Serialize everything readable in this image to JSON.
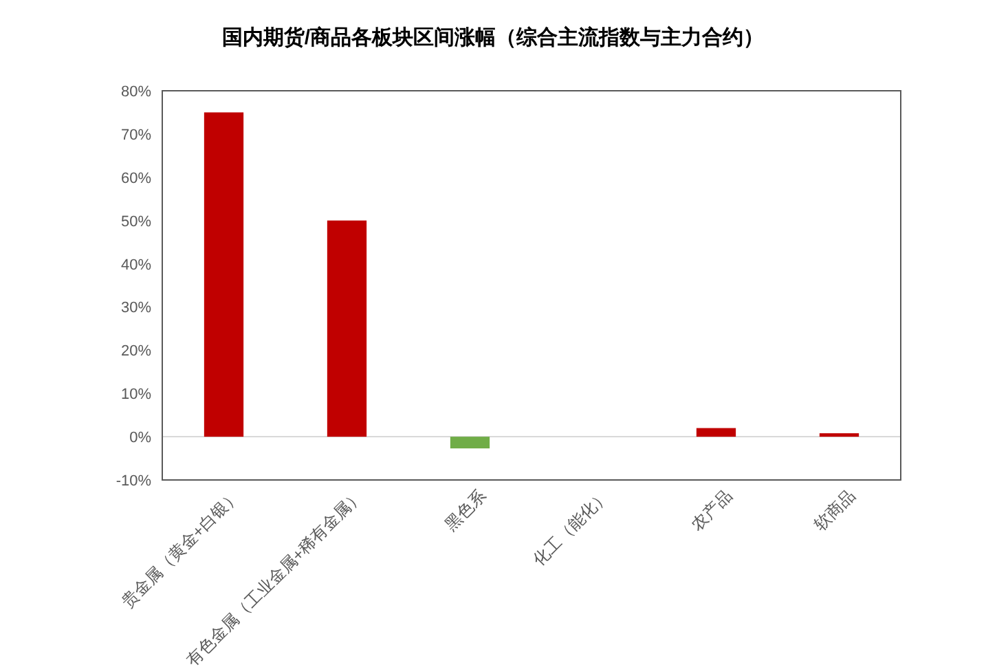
{
  "chart_data": {
    "type": "bar",
    "title": "国内期货/商品各板块区间涨幅（综合主流指数与主力合约）",
    "categories": [
      "贵金属（黄金+白银）",
      "有色金属（工业金属+稀有金属）",
      "黑色系",
      "化工（能化）",
      "农产品",
      "软商品"
    ],
    "values": [
      75,
      50,
      -2.7,
      0,
      2,
      0.8
    ],
    "colors": [
      "#c00000",
      "#c00000",
      "#70ad47",
      "#c00000",
      "#c00000",
      "#c00000"
    ],
    "ylim": [
      -10,
      80
    ],
    "yticks": [
      {
        "value": -10,
        "label": "-10%"
      },
      {
        "value": 0,
        "label": "0%"
      },
      {
        "value": 10,
        "label": "10%"
      },
      {
        "value": 20,
        "label": "20%"
      },
      {
        "value": 30,
        "label": "30%"
      },
      {
        "value": 40,
        "label": "40%"
      },
      {
        "value": 50,
        "label": "50%"
      },
      {
        "value": 60,
        "label": "60%"
      },
      {
        "value": 70,
        "label": "70%"
      },
      {
        "value": 80,
        "label": "80%"
      }
    ],
    "legend": false
  }
}
